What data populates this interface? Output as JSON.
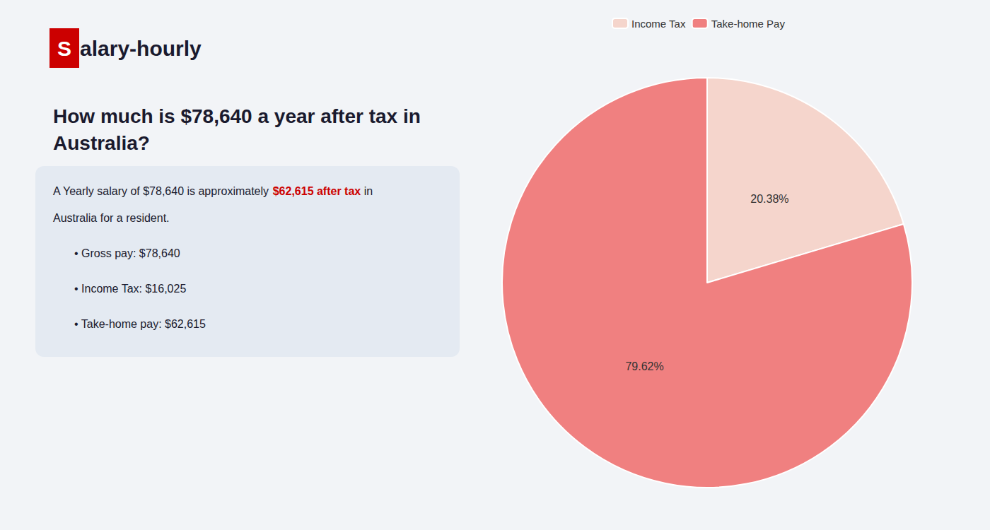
{
  "chart_data": {
    "type": "pie",
    "title": "How much is $78,640 a year after tax in Australia?",
    "categories": [
      "Income Tax",
      "Take-home Pay"
    ],
    "values": [
      20.38,
      79.62
    ],
    "value_labels": [
      "20.38%",
      "79.62%"
    ],
    "colors": [
      "#f5d5cc",
      "#f08080"
    ],
    "data_labels": true,
    "legend": "top",
    "annotations": [
      {
        "text": "S",
        "color": "#cc0000"
      },
      {
        "text": "alary-hourly"
      },
      {
        "text": "A Yearly salary of $78,640 is approximately"
      },
      {
        "text": "$62,615 after tax",
        "color": "#cc0000"
      },
      {
        "text": "in"
      },
      {
        "text": "Australia for a resident."
      },
      {
        "text": "• Gross pay: $78,640"
      },
      {
        "text": "• Income Tax: $16,025"
      },
      {
        "text": "• Take-home pay: $62,615"
      }
    ]
  }
}
